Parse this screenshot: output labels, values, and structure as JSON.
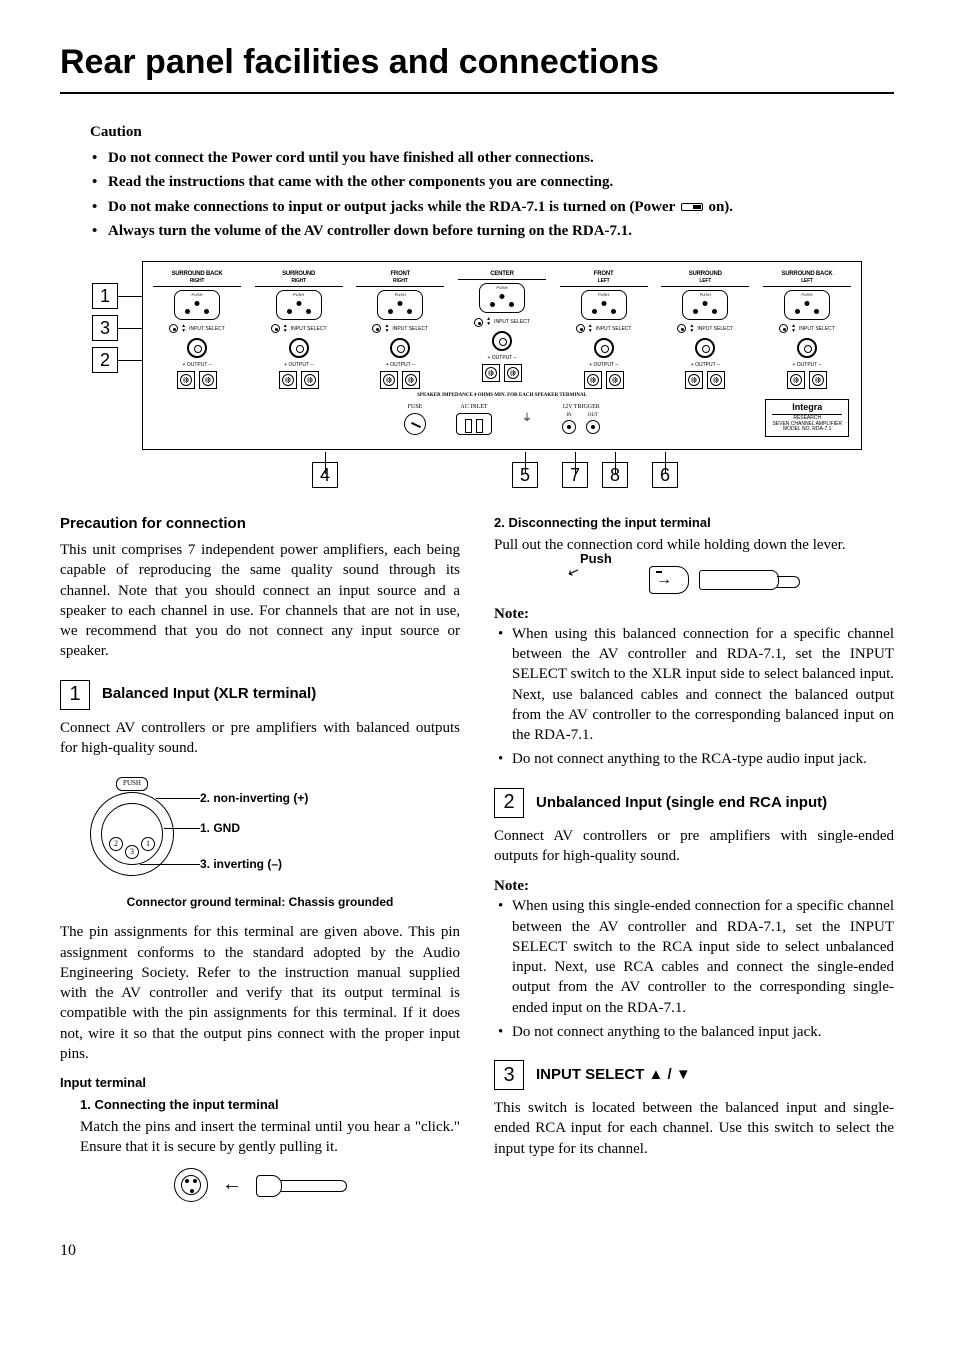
{
  "title": "Rear panel facilities and connections",
  "caution": {
    "heading": "Caution",
    "items": [
      "Do not connect the Power cord until you have finished all other connections.",
      "Read the instructions that came with the other components you are connecting.",
      "Do not make connections to input or output jacks while the RDA-7.1 is turned on (Power ",
      "Always turn the volume of the AV controller down before turning on the RDA-7.1."
    ],
    "item3_suffix": " on)."
  },
  "panel": {
    "channels": [
      {
        "top": "SURROUND BACK",
        "sub": "RIGHT"
      },
      {
        "top": "SURROUND",
        "sub": "RIGHT"
      },
      {
        "top": "FRONT",
        "sub": "RIGHT"
      },
      {
        "top": "CENTER",
        "sub": ""
      },
      {
        "top": "FRONT",
        "sub": "LEFT"
      },
      {
        "top": "SURROUND",
        "sub": "LEFT"
      },
      {
        "top": "SURROUND BACK",
        "sub": "LEFT"
      }
    ],
    "input_select": "INPUT SELECT",
    "output": "+  OUTPUT  –",
    "impedance": "SPEAKER IMPEDANCE\n4 OHMS MIN. FOR EACH\nSPEAKER TERMINAL",
    "fuse": "FUSE",
    "ac": "AC INLET",
    "trigger": "12V TRIGGER",
    "trig_in": "IN",
    "trig_out": "OUT",
    "brand": "Integra",
    "brand_sub": "RESEARCH\nSEVEN CHANNEL AMPLIFIER\nMODEL NO.  RDA-7.1",
    "callouts_left": [
      "1",
      "3",
      "2"
    ],
    "callouts_bottom": [
      "4",
      "5",
      "7",
      "8",
      "6"
    ]
  },
  "left": {
    "precaution_h": "Precaution for connection",
    "precaution_p": "This unit comprises 7 independent power amplifiers, each being capable of reproducing the same quality sound through its channel. Note that you should connect an input source and a speaker to each channel in use. For channels that are not in use, we recommend that you do not connect any input source or speaker.",
    "s1_num": "1",
    "s1_h": "Balanced Input (XLR terminal)",
    "s1_p1": "Connect AV controllers or pre amplifiers with balanced outputs for high-quality sound.",
    "pin_labels": {
      "a": "2. non-inverting (+)",
      "b": "1. GND",
      "c": "3. inverting (–)"
    },
    "pin_nums": {
      "p1": "1",
      "p2": "2",
      "p3": "3"
    },
    "xlr_push": "PUSH",
    "xlr_caption": "Connector ground terminal: Chassis grounded",
    "s1_p2": "The pin assignments for this terminal are given above. This pin assignment conforms to the standard adopted by the Audio Engineering Society. Refer to the instruction manual supplied with the AV controller and verify that its output terminal is compatible with the pin assignments for this terminal. If it does not, wire it so that the output pins connect with the proper input pins.",
    "input_term_h": "Input terminal",
    "conn1_h": "1. Connecting the input terminal",
    "conn1_p": "Match the pins and insert the terminal until you hear a \"click.\" Ensure that it is secure by gently pulling it."
  },
  "right": {
    "disc_h": "2. Disconnecting the input terminal",
    "disc_p": "Pull out the connection cord while holding down the lever.",
    "push_label": "Push",
    "note_h": "Note:",
    "note1": "When using this balanced connection for a specific channel between the AV controller and RDA-7.1, set the INPUT SELECT switch to the XLR input side to select balanced input. Next, use balanced cables and connect the balanced output from the AV controller to the corresponding balanced input on the RDA-7.1.",
    "note2": "Do not connect anything to the RCA-type audio input jack.",
    "s2_num": "2",
    "s2_h": "Unbalanced Input (single end RCA input)",
    "s2_p": "Connect AV controllers or pre amplifiers with single-ended outputs for high-quality sound.",
    "note2_h": "Note:",
    "note2_1": "When using this single-ended connection for a specific channel between the AV controller and RDA-7.1, set the INPUT SELECT switch to the RCA input side to select unbalanced input. Next, use RCA cables and connect the single-ended output from the AV controller to the corresponding single-ended input on the RDA-7.1.",
    "note2_2": "Do not connect anything to the balanced input jack.",
    "s3_num": "3",
    "s3_h": "INPUT SELECT ▲ / ▼",
    "s3_p": "This switch is located between the balanced input and single-ended RCA input for each channel. Use this switch to select the input type for its channel."
  },
  "page_number": "10",
  "colors": {
    "text": "#000000",
    "bg": "#ffffff"
  }
}
